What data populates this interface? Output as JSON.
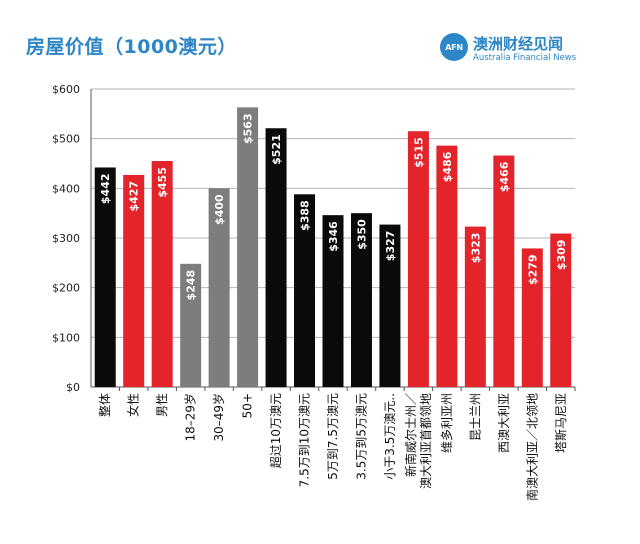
{
  "header": {
    "title": "房屋价值（1000澳元）",
    "brand_logo_text": "AFN",
    "brand_name_cn": "澳洲财经见闻",
    "brand_name_en": "Australia Financial News",
    "brand_color": "#2d86c6"
  },
  "chart_data": {
    "type": "bar",
    "title": "房屋价值（1000澳元）",
    "xlabel": "",
    "ylabel": "",
    "ylim": [
      0,
      600
    ],
    "yticks": [
      0,
      100,
      200,
      300,
      400,
      500,
      600
    ],
    "ytick_labels": [
      "$0",
      "$100",
      "$200",
      "$300",
      "$400",
      "$500",
      "$600"
    ],
    "grid": true,
    "colors": {
      "black": "#0a0a0a",
      "red": "#e3242b",
      "gray": "#7d7d7d"
    },
    "categories": [
      "整体",
      "女性",
      "男性",
      "18–29岁",
      "30–49岁",
      "50+",
      "超过10万澳元",
      "7.5万到10万澳元",
      "5万到7.5万澳元",
      "3.5万到5万澳元",
      "小于3.5万澳元..",
      "新南威尔士州／澳大利亚首都领地",
      "维多利亚州",
      "昆士兰州",
      "西澳大利亚",
      "南澳大利亚／北领地",
      "塔斯马尼亚"
    ],
    "category_lines": [
      [
        "整体"
      ],
      [
        "女性"
      ],
      [
        "男性"
      ],
      [
        "18–29岁"
      ],
      [
        "30–49岁"
      ],
      [
        "50+"
      ],
      [
        "超过10万澳元"
      ],
      [
        "7.5万到10万澳元"
      ],
      [
        "5万到7.5万澳元"
      ],
      [
        "3.5万到5万澳元"
      ],
      [
        "小于3.5万澳元.."
      ],
      [
        "新南威尔士州／",
        "澳大利亚首都领地"
      ],
      [
        "维多利亚州"
      ],
      [
        "昆士兰州"
      ],
      [
        "西澳大利亚"
      ],
      [
        "南澳大利亚／北领地"
      ],
      [
        "塔斯马尼亚"
      ]
    ],
    "values": [
      442,
      427,
      455,
      248,
      400,
      563,
      521,
      388,
      346,
      350,
      327,
      515,
      486,
      323,
      466,
      279,
      309
    ],
    "value_labels": [
      "$442",
      "$427",
      "$455",
      "$248",
      "$400",
      "$563",
      "$521",
      "$388",
      "$346",
      "$350",
      "$327",
      "$515",
      "$486",
      "$323",
      "$466",
      "$279",
      "$309"
    ],
    "bar_colors": [
      "black",
      "red",
      "red",
      "gray",
      "gray",
      "gray",
      "black",
      "black",
      "black",
      "black",
      "black",
      "red",
      "red",
      "red",
      "red",
      "red",
      "red"
    ]
  }
}
